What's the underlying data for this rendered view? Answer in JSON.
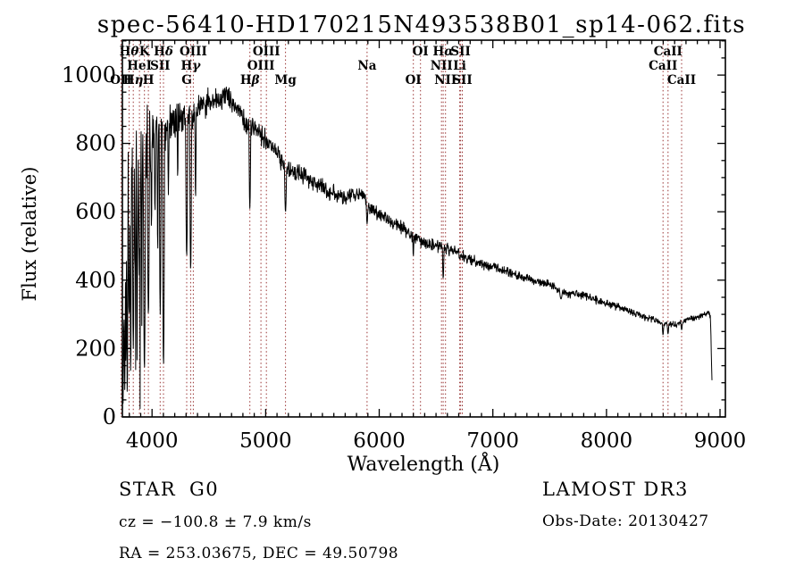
{
  "title": "spec-56410-HD170215N493538B01_sp14-062.fits",
  "footer": {
    "class_label": "STAR",
    "subclass_label": "G0",
    "survey_label": "LAMOST DR3",
    "cz_line": "cz = −100.8 ± 7.9 km/s",
    "obs_date_line": "Obs-Date: 20130427",
    "ra_dec_line": "RA = 253.03675, DEC =  49.50798"
  },
  "chart_data": {
    "type": "line",
    "title": "spec-56410-HD170215N493538B01_sp14-062.fits",
    "xlabel": "Wavelength (Å)",
    "ylabel": "Flux (relative)",
    "xlim": [
      3739,
      9047
    ],
    "ylim": [
      0,
      1102
    ],
    "x_ticks_major": [
      4000,
      5000,
      6000,
      7000,
      8000,
      9000
    ],
    "x_tick_labels": [
      "4000",
      "5000",
      "6000",
      "7000",
      "8000",
      "9000"
    ],
    "x_tick_minor_step": 100,
    "y_ticks_major": [
      0,
      200,
      400,
      600,
      800,
      1000
    ],
    "y_tick_labels": [
      "0",
      "200",
      "400",
      "600",
      "800",
      "1000"
    ],
    "y_tick_minor_step": 50,
    "grid": false,
    "trace_color": "#000000",
    "marker_line_color": "#993333",
    "noise_seed": 20130427,
    "sample_step_angstrom": 3,
    "data_end_wavelength": 8930,
    "spectral_lines": [
      {
        "label": "OII",
        "wavelength": 3727,
        "row": 3
      },
      {
        "label": "Hθ",
        "wavelength": 3798,
        "row": 1
      },
      {
        "label": "Hη",
        "wavelength": 3835,
        "row": 3
      },
      {
        "label": "HeI",
        "wavelength": 3889,
        "row": 2
      },
      {
        "label": "K",
        "wavelength": 3933,
        "row": 1
      },
      {
        "label": "H",
        "wavelength": 3968,
        "row": 3
      },
      {
        "label": "SII",
        "wavelength": 4072,
        "row": 2
      },
      {
        "label": "Hδ",
        "wavelength": 4101,
        "row": 1
      },
      {
        "label": "G",
        "wavelength": 4305,
        "row": 3
      },
      {
        "label": "Hγ",
        "wavelength": 4340,
        "row": 2
      },
      {
        "label": "OIII",
        "wavelength": 4363,
        "row": 1
      },
      {
        "label": "Hβ",
        "wavelength": 4861,
        "row": 3
      },
      {
        "label": "OIII",
        "wavelength": 4959,
        "row": 2
      },
      {
        "label": "OIII",
        "wavelength": 5007,
        "row": 1
      },
      {
        "label": "Mg",
        "wavelength": 5175,
        "row": 3
      },
      {
        "label": "Na",
        "wavelength": 5893,
        "row": 2
      },
      {
        "label": "OI",
        "wavelength": 6300,
        "row": 3
      },
      {
        "label": "OI",
        "wavelength": 6363,
        "row": 1
      },
      {
        "label": "NII",
        "wavelength": 6548,
        "row": 2
      },
      {
        "label": "Hα",
        "wavelength": 6563,
        "row": 1
      },
      {
        "label": "NII",
        "wavelength": 6583,
        "row": 3
      },
      {
        "label": "Li",
        "wavelength": 6708,
        "row": 2
      },
      {
        "label": "SII",
        "wavelength": 6716,
        "row": 1
      },
      {
        "label": "SII",
        "wavelength": 6731,
        "row": 3
      },
      {
        "label": "CaII",
        "wavelength": 8498,
        "row": 2
      },
      {
        "label": "CaII",
        "wavelength": 8542,
        "row": 1
      },
      {
        "label": "CaII",
        "wavelength": 8662,
        "row": 3
      }
    ],
    "spectrum_envelope": [
      [
        3739,
        320,
        300
      ],
      [
        3755,
        470,
        320
      ],
      [
        3775,
        580,
        300
      ],
      [
        3795,
        660,
        250
      ],
      [
        3820,
        700,
        220
      ],
      [
        3850,
        720,
        200
      ],
      [
        3880,
        740,
        170
      ],
      [
        3915,
        770,
        140
      ],
      [
        3950,
        790,
        120
      ],
      [
        3985,
        805,
        100
      ],
      [
        4025,
        820,
        80
      ],
      [
        4080,
        835,
        75
      ],
      [
        4150,
        855,
        65
      ],
      [
        4250,
        875,
        60
      ],
      [
        4350,
        890,
        58
      ],
      [
        4450,
        915,
        52
      ],
      [
        4550,
        933,
        48
      ],
      [
        4640,
        938,
        45
      ],
      [
        4710,
        915,
        45
      ],
      [
        4790,
        880,
        42
      ],
      [
        4861,
        848,
        40
      ],
      [
        4940,
        832,
        38
      ],
      [
        5010,
        802,
        36
      ],
      [
        5100,
        768,
        35
      ],
      [
        5180,
        722,
        34
      ],
      [
        5280,
        712,
        32
      ],
      [
        5380,
        692,
        32
      ],
      [
        5480,
        676,
        30
      ],
      [
        5580,
        657,
        30
      ],
      [
        5680,
        642,
        28
      ],
      [
        5780,
        648,
        28
      ],
      [
        5855,
        655,
        26
      ],
      [
        5920,
        612,
        26
      ],
      [
        6000,
        592,
        25
      ],
      [
        6100,
        572,
        24
      ],
      [
        6200,
        552,
        23
      ],
      [
        6300,
        522,
        22
      ],
      [
        6400,
        508,
        22
      ],
      [
        6500,
        500,
        21
      ],
      [
        6600,
        492,
        20
      ],
      [
        6700,
        478,
        20
      ],
      [
        6800,
        462,
        19
      ],
      [
        6900,
        450,
        18
      ],
      [
        7000,
        438,
        18
      ],
      [
        7100,
        428,
        17
      ],
      [
        7200,
        416,
        17
      ],
      [
        7300,
        406,
        16
      ],
      [
        7400,
        396,
        16
      ],
      [
        7500,
        388,
        15
      ],
      [
        7580,
        368,
        15
      ],
      [
        7660,
        362,
        15
      ],
      [
        7760,
        360,
        14
      ],
      [
        7860,
        348,
        14
      ],
      [
        7960,
        336,
        13
      ],
      [
        8060,
        326,
        13
      ],
      [
        8160,
        314,
        13
      ],
      [
        8260,
        300,
        12
      ],
      [
        8360,
        290,
        12
      ],
      [
        8460,
        280,
        12
      ],
      [
        8560,
        268,
        12
      ],
      [
        8650,
        272,
        12
      ],
      [
        8720,
        288,
        12
      ],
      [
        8800,
        292,
        11
      ],
      [
        8870,
        300,
        10
      ],
      [
        8900,
        308,
        10
      ],
      [
        8915,
        295,
        12
      ],
      [
        8922,
        210,
        18
      ],
      [
        8927,
        130,
        12
      ],
      [
        8930,
        100,
        8
      ]
    ],
    "absorption_dips": [
      [
        3745,
        40,
        6
      ],
      [
        3752,
        250,
        5
      ],
      [
        3760,
        80,
        6
      ],
      [
        3770,
        150,
        5
      ],
      [
        3782,
        60,
        6
      ],
      [
        3798,
        300,
        8
      ],
      [
        3812,
        120,
        6
      ],
      [
        3835,
        200,
        8
      ],
      [
        3852,
        430,
        6
      ],
      [
        3870,
        350,
        6
      ],
      [
        3889,
        450,
        8
      ],
      [
        3910,
        500,
        6
      ],
      [
        3933,
        140,
        10
      ],
      [
        3968,
        300,
        10
      ],
      [
        3995,
        550,
        5
      ],
      [
        4026,
        600,
        6
      ],
      [
        4050,
        480,
        5
      ],
      [
        4072,
        300,
        8
      ],
      [
        4101,
        150,
        10
      ],
      [
        4144,
        650,
        5
      ],
      [
        4226,
        700,
        5
      ],
      [
        4305,
        470,
        10
      ],
      [
        4340,
        430,
        9
      ],
      [
        4383,
        640,
        6
      ],
      [
        4861,
        610,
        8
      ],
      [
        5175,
        600,
        9
      ],
      [
        5893,
        565,
        8
      ],
      [
        6300,
        470,
        5
      ],
      [
        6563,
        405,
        7
      ],
      [
        7600,
        345,
        12
      ],
      [
        8498,
        240,
        7
      ],
      [
        8542,
        243,
        7
      ],
      [
        8662,
        255,
        7
      ]
    ]
  }
}
